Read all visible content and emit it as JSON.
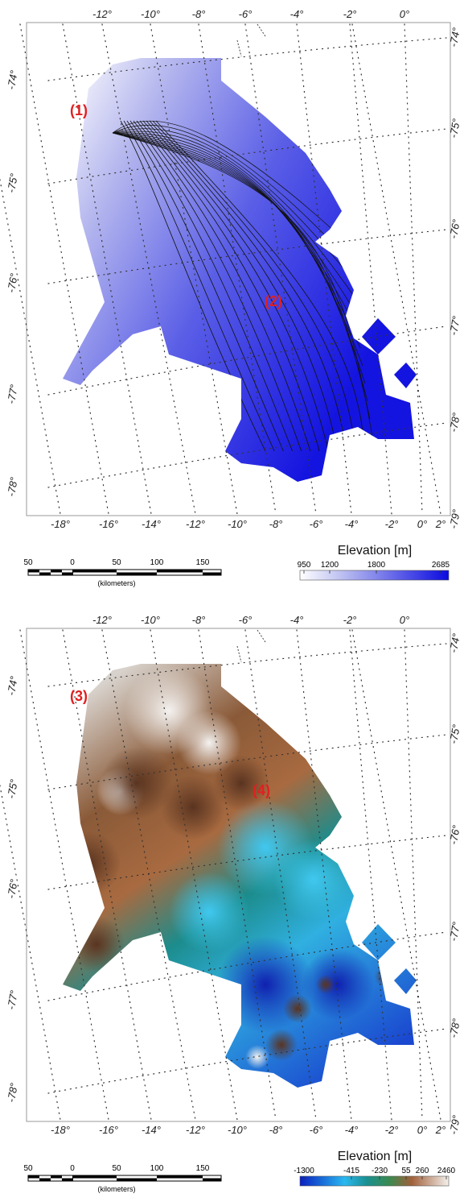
{
  "panels": [
    {
      "lon_labels_top": [
        "-12°",
        "-10°",
        "-8°",
        "-6°",
        "-4°",
        "-2°",
        "0°"
      ],
      "lon_labels_bottom": [
        "-18°",
        "-16°",
        "-14°",
        "-12°",
        "-10°",
        "-8°",
        "-6°",
        "-4°",
        "-2°",
        "0°",
        "2°"
      ],
      "lat_labels_left": [
        "-74°",
        "-75°",
        "-76°",
        "-77°",
        "-78°"
      ],
      "lat_labels_right": [
        "-74°",
        "-75°",
        "-76°",
        "-77°",
        "-78°",
        "-79°"
      ],
      "annotations": [
        "(1)",
        "(2)"
      ],
      "scale_bar": {
        "labels": [
          "50",
          "0",
          "50",
          "100",
          "150"
        ],
        "unit": "(kilometers)"
      },
      "colorbar": {
        "title": "Elevation [m]",
        "ticks": [
          "950",
          "1200",
          "1800",
          "2685"
        ]
      }
    },
    {
      "lon_labels_top": [
        "-12°",
        "-10°",
        "-8°",
        "-6°",
        "-4°",
        "-2°",
        "0°"
      ],
      "lon_labels_bottom": [
        "-18°",
        "-16°",
        "-14°",
        "-12°",
        "-10°",
        "-8°",
        "-6°",
        "-4°",
        "-2°",
        "0°",
        "2°"
      ],
      "lat_labels_left": [
        "-74°",
        "-75°",
        "-76°",
        "-77°",
        "-78°"
      ],
      "lat_labels_right": [
        "-74°",
        "-75°",
        "-76°",
        "-77°",
        "-78°",
        "-79°"
      ],
      "annotations": [
        "(3)",
        "(4)"
      ],
      "scale_bar": {
        "labels": [
          "50",
          "0",
          "50",
          "100",
          "150"
        ],
        "unit": "(kilometers)"
      },
      "colorbar": {
        "title": "Elevation [m]",
        "ticks": [
          "-1300",
          "-415",
          "-230",
          "55",
          "260",
          "2460"
        ]
      }
    }
  ]
}
